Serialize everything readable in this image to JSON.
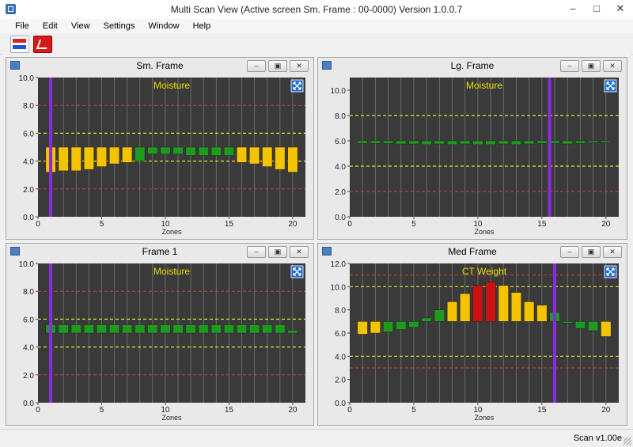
{
  "window": {
    "title": "Multi Scan View (Active screen Sm. Frame : 00-0000) Version 1.0.0.7",
    "minimize": "–",
    "maximize": "□",
    "close": "✕"
  },
  "menu": [
    "File",
    "Edit",
    "View",
    "Settings",
    "Window",
    "Help"
  ],
  "toolbar": {
    "icons": [
      "scan-compare-icon",
      "chart-report-icon"
    ]
  },
  "colors": {
    "plot_bg": "#3a3a3a",
    "yellow_bar": "#f5c400",
    "green_bar": "#1e9a1e",
    "red_bar": "#cc1111",
    "purple_marker": "#8a2be2",
    "red_limit": "#d04040",
    "yellow_limit": "#e8e030",
    "title_text": "#e8e000"
  },
  "panel_buttons": {
    "minimize": "–",
    "restore": "▣",
    "close": "✕"
  },
  "panels": [
    {
      "title": "Sm. Frame",
      "chart_data": {
        "type": "bar",
        "title": "Moisture",
        "xlabel": "Zones",
        "ylim": [
          0,
          10
        ],
        "yticks": [
          "0.0",
          "2.0",
          "4.0",
          "6.0",
          "8.0",
          "10.0"
        ],
        "xticks": [
          0,
          5,
          10,
          15,
          20
        ],
        "xlim": [
          0,
          21
        ],
        "baseline": 4.2,
        "zones": [
          1,
          2,
          3,
          4,
          5,
          6,
          7,
          8,
          9,
          10,
          11,
          12,
          13,
          14,
          15,
          16,
          17,
          18,
          19,
          20
        ],
        "values": [
          3.2,
          3.3,
          3.3,
          3.4,
          3.6,
          3.8,
          3.9,
          4.0,
          4.5,
          4.5,
          4.5,
          4.4,
          4.4,
          4.4,
          4.4,
          3.9,
          3.8,
          3.6,
          3.4,
          3.2
        ],
        "colors": [
          "yellow",
          "yellow",
          "yellow",
          "yellow",
          "yellow",
          "yellow",
          "yellow",
          "green",
          "green",
          "green",
          "green",
          "green",
          "green",
          "green",
          "green",
          "yellow",
          "yellow",
          "yellow",
          "yellow",
          "yellow"
        ],
        "top_values": [
          5.0,
          5.0,
          5.0,
          5.0,
          5.0,
          5.0,
          5.0,
          5.0,
          5.0,
          5.0,
          5.0,
          5.0,
          5.0,
          5.0,
          5.0,
          5.0,
          5.0,
          5.0,
          5.0,
          5.0
        ],
        "red_limits": [
          2.0,
          8.0
        ],
        "yellow_limits": [
          4.0,
          6.0
        ],
        "marker_zone": 1
      }
    },
    {
      "title": "Lg. Frame",
      "chart_data": {
        "type": "bar",
        "title": "Moisture",
        "xlabel": "Zones",
        "ylim": [
          0,
          11
        ],
        "yticks": [
          "0.0",
          "2.0",
          "4.0",
          "6.0",
          "8.0",
          "10.0"
        ],
        "xticks": [
          0,
          5,
          10,
          15,
          20
        ],
        "xlim": [
          0,
          21
        ],
        "baseline": 6.0,
        "zones": [
          1,
          2,
          3,
          4,
          5,
          6,
          7,
          8,
          9,
          10,
          11,
          12,
          13,
          14,
          15,
          16,
          17,
          18,
          19,
          20
        ],
        "values": [
          5.8,
          5.8,
          5.8,
          5.75,
          5.75,
          5.7,
          5.75,
          5.7,
          5.75,
          5.7,
          5.7,
          5.75,
          5.7,
          5.75,
          5.8,
          5.8,
          5.75,
          5.8,
          5.9,
          5.95
        ],
        "colors": [
          "green",
          "green",
          "green",
          "green",
          "green",
          "green",
          "green",
          "green",
          "green",
          "green",
          "green",
          "green",
          "green",
          "green",
          "green",
          "green",
          "green",
          "green",
          "green",
          "green"
        ],
        "red_limits": [
          2.0,
          8.0
        ],
        "yellow_limits": [
          4.0,
          8.0
        ],
        "marker_zone": 15.6
      }
    },
    {
      "title": "Frame 1",
      "chart_data": {
        "type": "bar",
        "title": "Moisture",
        "xlabel": "Zones",
        "ylim": [
          0,
          10
        ],
        "yticks": [
          "0.0",
          "2.0",
          "4.0",
          "6.0",
          "8.0",
          "10.0"
        ],
        "xticks": [
          0,
          5,
          10,
          15,
          20
        ],
        "xlim": [
          0,
          21
        ],
        "baseline": 5.0,
        "zones": [
          1,
          2,
          3,
          4,
          5,
          6,
          7,
          8,
          9,
          10,
          11,
          12,
          13,
          14,
          15,
          16,
          17,
          18,
          19,
          20
        ],
        "values": [
          5.6,
          5.6,
          5.6,
          5.6,
          5.6,
          5.6,
          5.6,
          5.6,
          5.6,
          5.6,
          5.6,
          5.6,
          5.6,
          5.6,
          5.6,
          5.6,
          5.6,
          5.6,
          5.6,
          5.2
        ],
        "colors": [
          "green",
          "green",
          "green",
          "green",
          "green",
          "green",
          "green",
          "green",
          "green",
          "green",
          "green",
          "green",
          "green",
          "green",
          "green",
          "green",
          "green",
          "green",
          "green",
          "green"
        ],
        "red_limits": [
          2.0,
          8.0
        ],
        "yellow_limits": [
          4.0,
          6.0
        ],
        "marker_zone": 1
      }
    },
    {
      "title": "Med Frame",
      "chart_data": {
        "type": "bar",
        "title": "CT Weight",
        "xlabel": "Zones",
        "ylim": [
          0,
          12
        ],
        "yticks": [
          "0.0",
          "2.0",
          "4.0",
          "6.0",
          "8.0",
          "10.0",
          "12.0"
        ],
        "xticks": [
          0,
          5,
          10,
          15,
          20
        ],
        "xlim": [
          0,
          21
        ],
        "baseline": 7.0,
        "zones": [
          1,
          2,
          3,
          4,
          5,
          6,
          7,
          8,
          9,
          10,
          11,
          12,
          13,
          14,
          15,
          16,
          17,
          18,
          19,
          20
        ],
        "values": [
          5.9,
          6.0,
          6.1,
          6.3,
          6.5,
          7.3,
          8.0,
          8.7,
          9.4,
          10.1,
          10.4,
          10.1,
          9.5,
          8.7,
          8.4,
          7.8,
          6.9,
          6.4,
          6.2,
          5.7
        ],
        "colors": [
          "yellow",
          "yellow",
          "green",
          "green",
          "green",
          "green",
          "green",
          "yellow",
          "yellow",
          "red",
          "red",
          "yellow",
          "yellow",
          "yellow",
          "yellow",
          "green",
          "green",
          "green",
          "green",
          "yellow"
        ],
        "red_limits": [
          3.0,
          11.0
        ],
        "yellow_limits": [
          4.0,
          10.0
        ],
        "marker_zone": 16
      }
    }
  ],
  "status": "Scan v1.00e"
}
